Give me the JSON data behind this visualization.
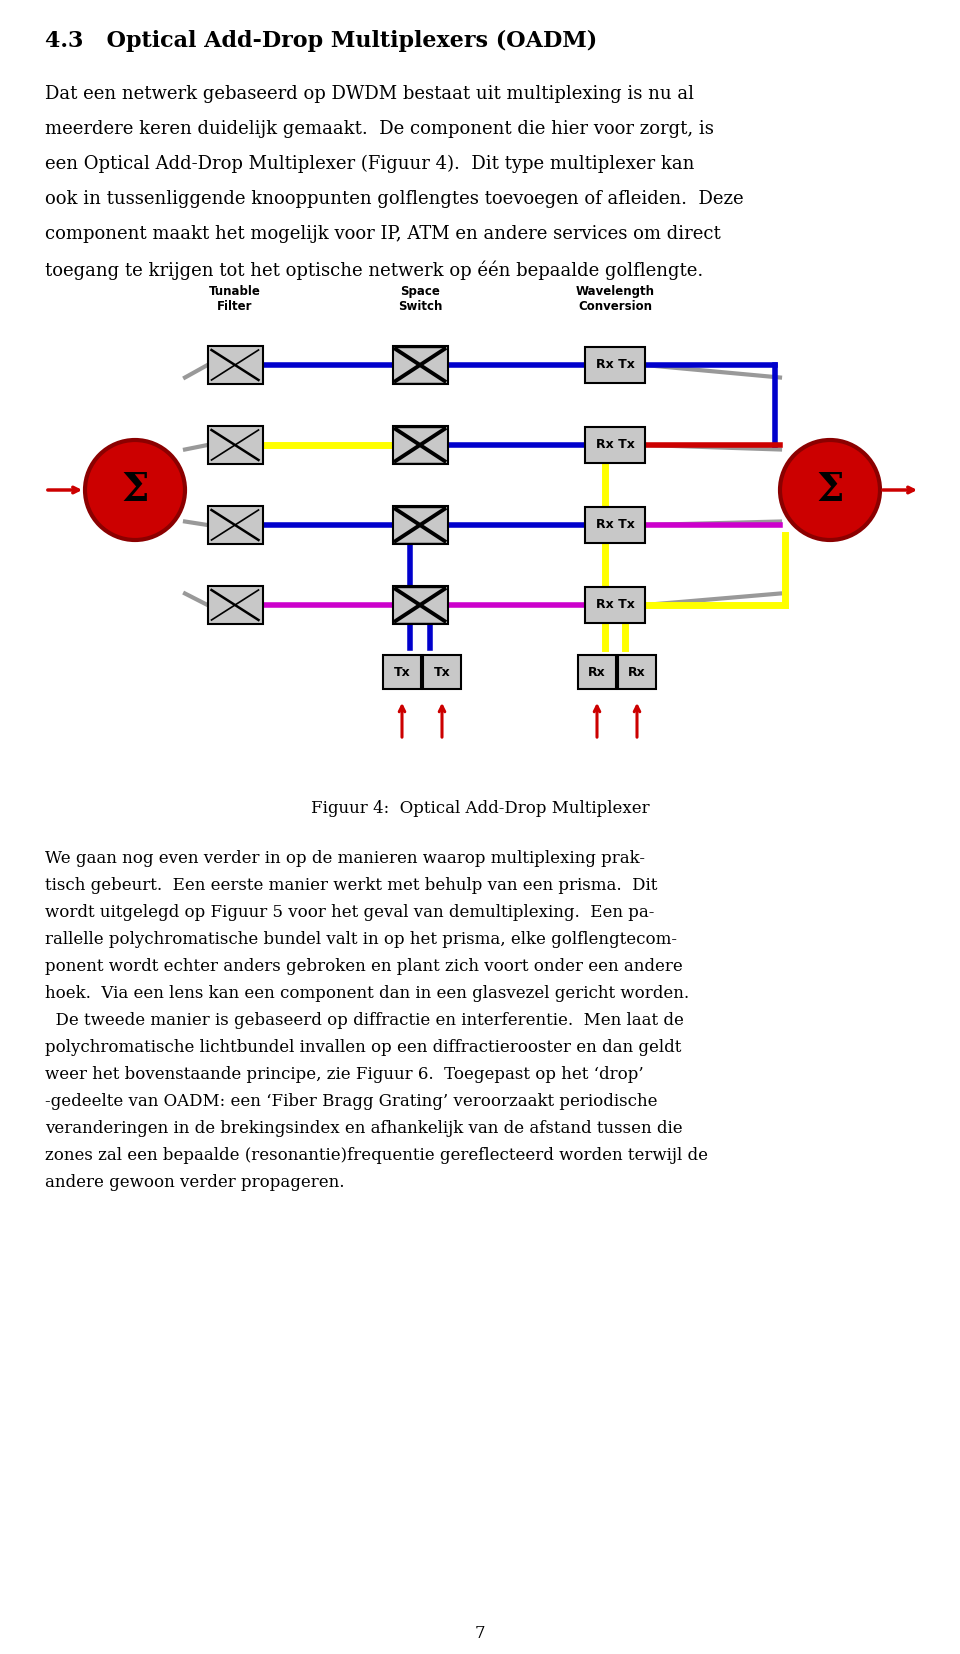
{
  "title": "4.3   Optical Add-Drop Multiplexers (OADM)",
  "para1_lines": [
    "Dat een netwerk gebaseerd op DWDM bestaat uit multiplexing is nu al",
    "meerdere keren duidelijk gemaakt.  De component die hier voor zorgt, is",
    "een Optical Add-Drop Multiplexer (Figuur 4).  Dit type multiplexer kan",
    "ook in tussenliggende knooppunten golflengtes toevoegen of afleiden.  Deze",
    "component maakt het mogelijk voor IP, ATM en andere services om direct",
    "toegang te krijgen tot het optische netwerk op één bepaalde golflengte."
  ],
  "fig_caption": "Figuur 4:  Optical Add-Drop Multiplexer",
  "para2_lines": [
    "We gaan nog even verder in op de manieren waarop multiplexing prak-",
    "tisch gebeurt.  Een eerste manier werkt met behulp van een prisma.  Dit",
    "wordt uitgelegd op Figuur 5 voor het geval van demultiplexing.  Een pa-",
    "rallelle polychromatische bundel valt in op het prisma, elke golflengtecom-",
    "ponent wordt echter anders gebroken en plant zich voort onder een andere",
    "hoek.  Via een lens kan een component dan in een glasvezel gericht worden.",
    "  De tweede manier is gebaseerd op diffractie en interferentie.  Men laat de",
    "polychromatische lichtbundel invallen op een diffractierooster en dan geldt",
    "weer het bovenstaande principe, zie Figuur 6.  Toegepast op het ‘drop’",
    "-gedeelte van OADM: een ‘Fiber Bragg Grating’ veroorzaakt periodische",
    "veranderingen in de brekingsindex en afhankelijk van de afstand tussen die",
    "zones zal een bepaalde (resonantie)frequentie gereflecteerd worden terwijl de",
    "andere gewoon verder propageren."
  ],
  "page_number": "7",
  "bg_color": "#ffffff",
  "text_color": "#000000",
  "label_tf": "Tunable\nFilter",
  "label_ss": "Space\nSwitch",
  "label_wc": "Wavelength\nConversion",
  "sigma_color": "#cc0000",
  "sigma_edge": "#8b0000",
  "gray_line": "#999999",
  "blue": "#0000cc",
  "yellow": "#ffff00",
  "red": "#cc0000",
  "purple": "#cc00cc",
  "box_fill": "#c8c8c8",
  "box_edge": "#000000"
}
